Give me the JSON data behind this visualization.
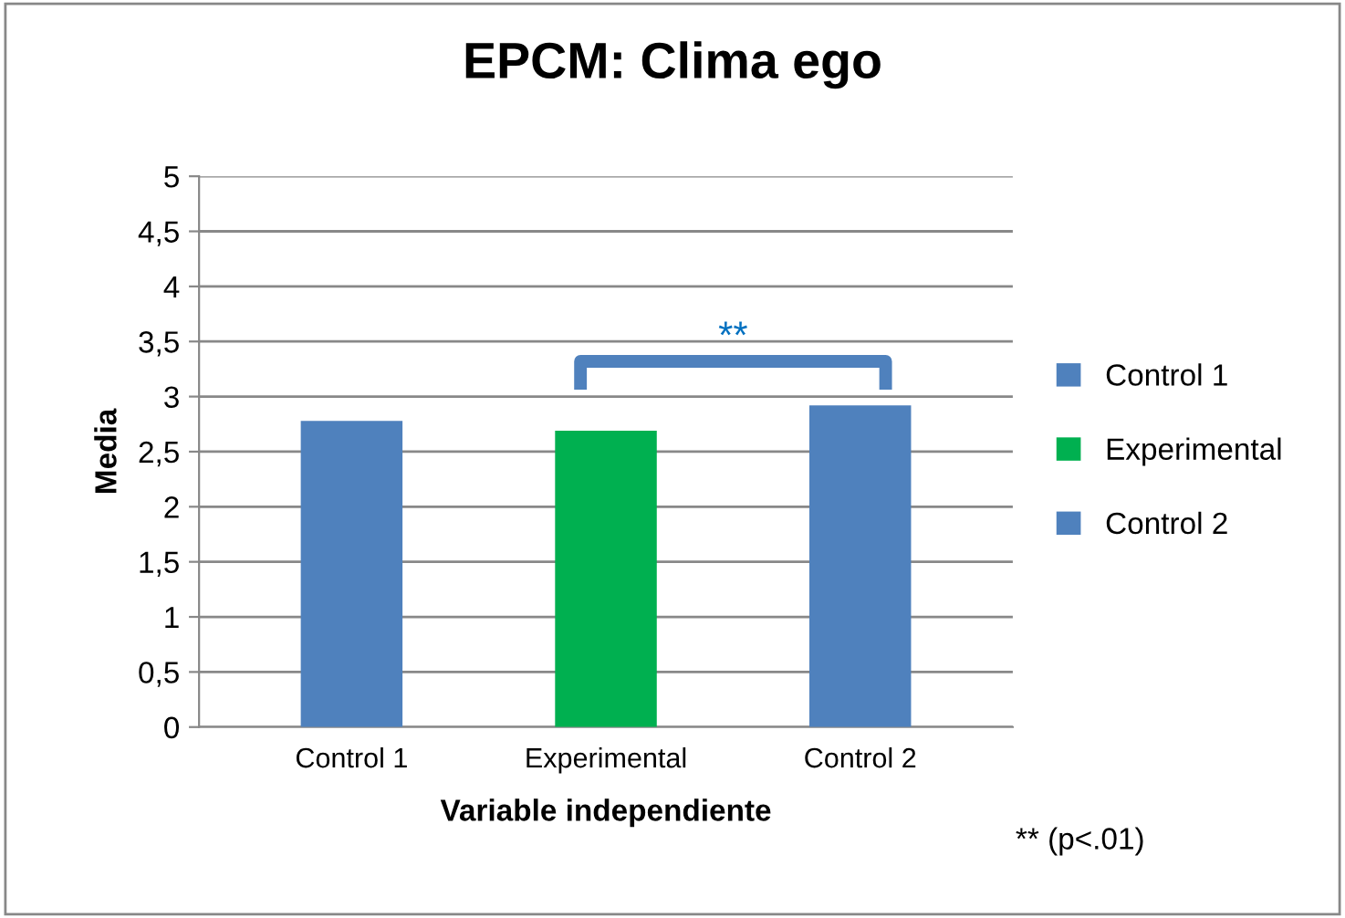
{
  "chart_data": {
    "type": "bar",
    "title": "EPCM: Clima ego",
    "xlabel": "Variable independiente",
    "ylabel": "Media",
    "categories": [
      "Control 1",
      "Experimental",
      "Control 2"
    ],
    "series": [
      {
        "name": "Control 1",
        "color": "#4f81bd",
        "values": [
          2.78,
          null,
          null
        ]
      },
      {
        "name": "Experimental",
        "color": "#00b050",
        "values": [
          null,
          2.69,
          null
        ]
      },
      {
        "name": "Control 2",
        "color": "#4f81bd",
        "values": [
          null,
          null,
          2.92
        ]
      }
    ],
    "ylim": [
      0,
      5
    ],
    "yticks": [
      0,
      {
        "value": 0.5,
        "label": "0,5"
      },
      1,
      {
        "value": 1.5,
        "label": "1,5"
      },
      2,
      {
        "value": 2.5,
        "label": "2,5"
      },
      3,
      {
        "value": 3.5,
        "label": "3,5"
      },
      4,
      {
        "value": 4.5,
        "label": "4,5"
      },
      5
    ],
    "grid": "y",
    "legend": "right",
    "annotations": [
      "**",
      "** (p<.01)"
    ]
  }
}
